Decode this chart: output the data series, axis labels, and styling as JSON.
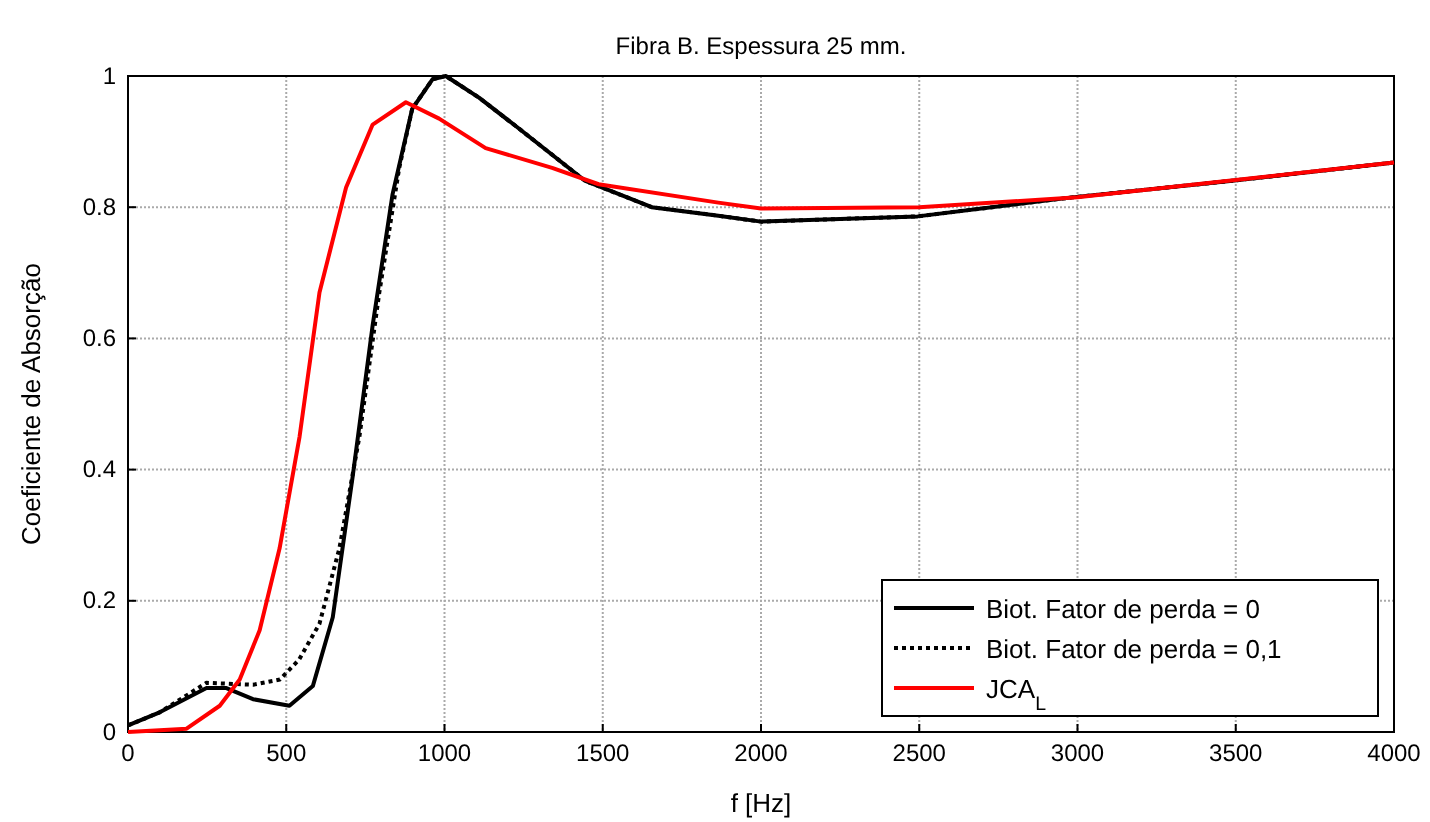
{
  "chart_data": {
    "type": "line",
    "title": "Fibra B. Espessura 25 mm.",
    "xlabel": "f [Hz]",
    "ylabel": "Coeficiente de Absorção",
    "xlim": [
      0,
      4000
    ],
    "xticks": [
      0,
      500,
      1000,
      1500,
      2000,
      2500,
      3000,
      3500,
      4000
    ],
    "ylim": [
      0,
      1
    ],
    "yticks": [
      0,
      0.2,
      0.4,
      0.6,
      0.8,
      1
    ],
    "grid": true,
    "legend": "bottom right",
    "series": [
      {
        "name": "Biot. Fator de perda = 0",
        "color": "#000000",
        "line_style": "solid",
        "x": [
          0,
          100,
          248,
          311,
          395,
          510,
          584,
          647,
          710,
          773,
          836,
          898,
          962,
          1004,
          1109,
          1235,
          1445,
          1655,
          1865,
          2000,
          2495,
          2983,
          3482,
          4000
        ],
        "values": [
          0.01,
          0.03,
          0.067,
          0.067,
          0.05,
          0.04,
          0.07,
          0.175,
          0.39,
          0.62,
          0.82,
          0.95,
          0.995,
          1.0,
          0.967,
          0.92,
          0.84,
          0.8,
          0.787,
          0.778,
          0.786,
          0.815,
          0.84,
          0.868
        ]
      },
      {
        "name": "Biot. Fator de perda = 0,1",
        "color": "#000000",
        "line_style": "dotted",
        "x": [
          0,
          100,
          248,
          395,
          480,
          540,
          605,
          668,
          731,
          794,
          857,
          898,
          962,
          1004,
          1109,
          1235,
          1445,
          1655,
          1865,
          2000,
          2495,
          2983,
          3482,
          4000
        ],
        "values": [
          0.01,
          0.03,
          0.075,
          0.072,
          0.08,
          0.11,
          0.165,
          0.28,
          0.45,
          0.67,
          0.86,
          0.95,
          0.995,
          1.0,
          0.967,
          0.92,
          0.84,
          0.8,
          0.787,
          0.778,
          0.786,
          0.815,
          0.84,
          0.868
        ]
      },
      {
        "name": "JCA$_{L}$",
        "color": "#ff0000",
        "line_style": "solid",
        "x": [
          0,
          185,
          290,
          353,
          416,
          479,
          542,
          605,
          689,
          773,
          878,
          983,
          1130,
          1340,
          1487,
          1865,
          2000,
          2500,
          3000,
          4000
        ],
        "values": [
          0,
          0.005,
          0.04,
          0.08,
          0.155,
          0.28,
          0.45,
          0.67,
          0.83,
          0.926,
          0.96,
          0.935,
          0.89,
          0.86,
          0.835,
          0.807,
          0.798,
          0.8,
          0.815,
          0.868
        ]
      }
    ]
  }
}
